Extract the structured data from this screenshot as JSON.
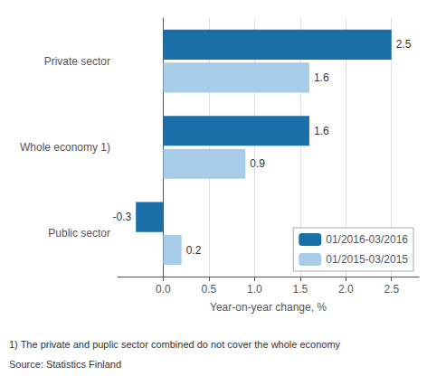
{
  "chart_data": {
    "type": "bar",
    "orientation": "horizontal",
    "categories": [
      "Public sector",
      "Whole economy 1)",
      "Private sector"
    ],
    "series": [
      {
        "name": "01/2016-03/2016",
        "color": "#1a6fa8",
        "values": [
          -0.3,
          1.6,
          2.5
        ]
      },
      {
        "name": "01/2015-03/2015",
        "color": "#a8cde8",
        "values": [
          0.2,
          0.9,
          1.6
        ]
      }
    ],
    "xlabel": "Year-on-year change, %",
    "xlim": [
      -0.5,
      2.8
    ],
    "xticks": [
      {
        "value": 0.0,
        "label": "0.0"
      },
      0.5,
      {
        "value": 1.0,
        "label": "1.0"
      },
      1.5,
      {
        "value": 2.0,
        "label": "2.0"
      },
      2.5
    ],
    "grid": true,
    "legend": "lower right",
    "data_labels": true,
    "annotations": [
      "1) The private and puplic sector combined do not cover the whole economy",
      "Source: Statistics Finland"
    ]
  }
}
